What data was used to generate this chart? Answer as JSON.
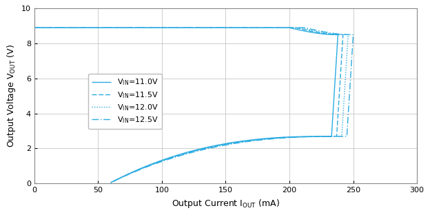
{
  "title": "",
  "xlabel": "Output Current I",
  "xlabel_sub": "OUT",
  "xlabel_unit": " (mA)",
  "ylabel": "Output Voltage V",
  "ylabel_sub": "OUT",
  "ylabel_unit": " (V)",
  "xlim": [
    0,
    300
  ],
  "ylim": [
    0,
    10
  ],
  "xticks": [
    0,
    50,
    100,
    150,
    200,
    250,
    300
  ],
  "yticks": [
    0,
    2,
    4,
    6,
    8,
    10
  ],
  "line_color": "#29ABE2",
  "bg_color": "#FFFFFF",
  "legend_entries": [
    {
      "label": "V",
      "label_sub": "IN",
      "label_val": "=11.0V",
      "linestyle": "solid"
    },
    {
      "label": "V",
      "label_sub": "IN",
      "label_val": "=11.5V",
      "linestyle": "dashed"
    },
    {
      "label": "V",
      "label_sub": "IN",
      "label_val": "=12.0V",
      "linestyle": "dotted"
    },
    {
      "label": "V",
      "label_sub": "IN",
      "label_val": "=12.5V",
      "linestyle": "dashdot"
    }
  ],
  "curves": [
    {
      "linestyle": "solid",
      "x_knee": 238,
      "x_fan_start": 200
    },
    {
      "linestyle": "dashed",
      "x_knee": 242,
      "x_fan_start": 205
    },
    {
      "linestyle": "dotted",
      "x_knee": 246,
      "x_fan_start": 208
    },
    {
      "linestyle": "dashdot",
      "x_knee": 250,
      "x_fan_start": 212
    }
  ]
}
